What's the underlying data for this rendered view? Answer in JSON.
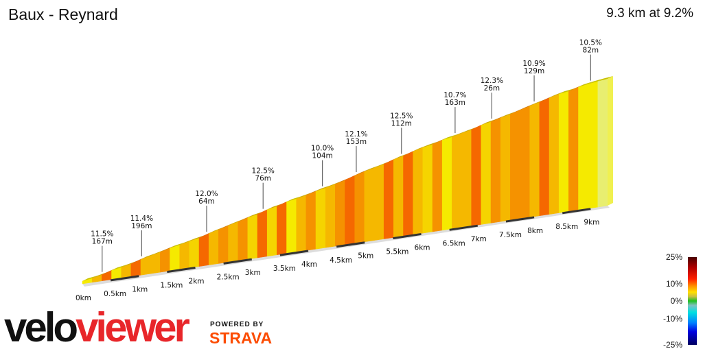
{
  "header": {
    "title": "Baux - Reynard",
    "summary": "9.3 km at 9.2%"
  },
  "chart_data": {
    "type": "area",
    "title": "Baux - Reynard",
    "total_distance_km": 9.3,
    "average_gradient_pct": 9.2,
    "x_ticks": [
      "0km",
      "0.5km",
      "1km",
      "1.5km",
      "2km",
      "2.5km",
      "3km",
      "3.5km",
      "4km",
      "4.5km",
      "5km",
      "5.5km",
      "6km",
      "6.5km",
      "7km",
      "7.5km",
      "8km",
      "8.5km",
      "9km"
    ],
    "segment_gradients_pct": [
      5,
      8,
      11.5,
      6,
      8,
      11.4,
      8,
      9,
      10,
      6,
      9,
      7,
      12,
      9,
      10,
      9,
      10.5,
      7,
      12.5,
      7,
      12,
      6,
      8,
      10,
      7,
      9,
      10,
      12.1,
      10,
      8,
      9,
      12.5,
      8,
      12,
      9,
      7,
      10.7,
      6,
      9,
      8,
      12.3,
      7,
      10,
      8,
      10.9,
      10,
      9,
      11,
      9,
      5,
      10.5,
      6,
      5,
      4
    ],
    "annotations": [
      {
        "km": 0.35,
        "gradient": "11.5%",
        "length": "167m"
      },
      {
        "km": 1.05,
        "gradient": "11.4%",
        "length": "196m"
      },
      {
        "km": 2.2,
        "gradient": "12.0%",
        "length": "64m"
      },
      {
        "km": 3.2,
        "gradient": "12.5%",
        "length": "76m"
      },
      {
        "km": 4.25,
        "gradient": "10.0%",
        "length": "104m"
      },
      {
        "km": 4.85,
        "gradient": "12.1%",
        "length": "153m"
      },
      {
        "km": 5.65,
        "gradient": "12.5%",
        "length": "112m"
      },
      {
        "km": 6.6,
        "gradient": "10.7%",
        "length": "163m"
      },
      {
        "km": 7.25,
        "gradient": "12.3%",
        "length": "26m"
      },
      {
        "km": 8.0,
        "gradient": "10.9%",
        "length": "129m"
      },
      {
        "km": 9.0,
        "gradient": "10.5%",
        "length": "82m"
      }
    ],
    "legend": {
      "placement": "bottom-right",
      "labels": [
        "25%",
        "10%",
        "0%",
        "-10%",
        "-25%"
      ]
    }
  },
  "branding": {
    "logo_part1": "velo",
    "logo_part2": "viewer",
    "powered_by": "POWERED BY",
    "strava": "STRAVA"
  }
}
